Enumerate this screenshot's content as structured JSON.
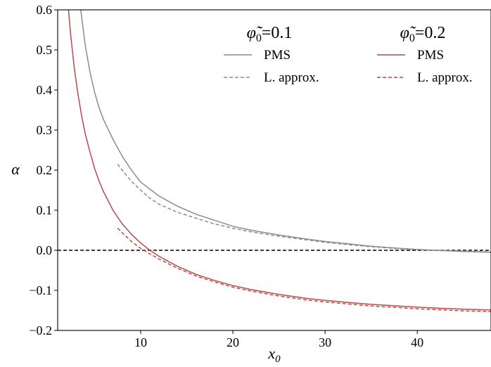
{
  "chart_data": {
    "type": "line",
    "xlabel_base": "x",
    "xlabel_sub": "0",
    "ylabel": "α",
    "xlim": [
      1,
      48
    ],
    "ylim": [
      -0.2,
      0.6
    ],
    "xticks": [
      10,
      20,
      30,
      40
    ],
    "yticks": [
      -0.2,
      -0.1,
      0.0,
      0.1,
      0.2,
      0.3,
      0.4,
      0.5,
      0.6
    ],
    "ytick_labels": [
      "−0.2",
      "−0.1",
      "0.0",
      "0.1",
      "0.2",
      "0.3",
      "0.4",
      "0.5",
      "0.6"
    ],
    "xtick_labels": [
      "10",
      "20",
      "30",
      "40"
    ],
    "grid": false,
    "reference_line": {
      "y": 0.0,
      "style": "dashed",
      "color": "#000000"
    },
    "legend_groups": [
      {
        "title_symbol": "φ̃",
        "title_sub": "0",
        "title_value": "=0.1",
        "color": "#8c8c8c",
        "entries": [
          "PMS",
          "L. approx."
        ]
      },
      {
        "title_symbol": "φ̃",
        "title_sub": "0",
        "title_value": "=0.2",
        "color": "#b94a4a",
        "entries": [
          "PMS",
          "L. approx."
        ]
      }
    ],
    "series": [
      {
        "group": 0,
        "style": "solid",
        "color": "#8c8c8c",
        "x": [
          3.2,
          3.5,
          4,
          4.5,
          5,
          5.5,
          6,
          7,
          8,
          9,
          10,
          12,
          14,
          16,
          18,
          20,
          22,
          25,
          28,
          30,
          33,
          35,
          38,
          40,
          42,
          45,
          48
        ],
        "y": [
          0.66,
          0.6,
          0.51,
          0.445,
          0.395,
          0.355,
          0.325,
          0.277,
          0.235,
          0.2,
          0.17,
          0.135,
          0.11,
          0.09,
          0.075,
          0.06,
          0.05,
          0.038,
          0.028,
          0.022,
          0.015,
          0.01,
          0.005,
          0.002,
          0.0,
          -0.003,
          -0.005
        ]
      },
      {
        "group": 0,
        "style": "dashed",
        "color": "#8c8c8c",
        "x": [
          7.5,
          8,
          9,
          10,
          11,
          12,
          14,
          16,
          18,
          20,
          22,
          25,
          28,
          30,
          33,
          35,
          38,
          40,
          42,
          45,
          48
        ],
        "y": [
          0.215,
          0.2,
          0.172,
          0.15,
          0.13,
          0.115,
          0.095,
          0.08,
          0.066,
          0.055,
          0.046,
          0.035,
          0.026,
          0.02,
          0.013,
          0.009,
          0.004,
          0.002,
          0.0,
          -0.002,
          -0.004
        ]
      },
      {
        "group": 1,
        "style": "solid",
        "color": "#b94a4a",
        "x": [
          2.1,
          2.4,
          2.8,
          3.2,
          3.6,
          4,
          4.5,
          5,
          5.5,
          6,
          7,
          8,
          9,
          10,
          11,
          12,
          14,
          16,
          18,
          20,
          22,
          25,
          28,
          30,
          33,
          35,
          38,
          40,
          42,
          45,
          48
        ],
        "y": [
          0.62,
          0.54,
          0.455,
          0.39,
          0.335,
          0.29,
          0.245,
          0.205,
          0.172,
          0.145,
          0.1,
          0.066,
          0.04,
          0.018,
          0.0,
          -0.015,
          -0.04,
          -0.06,
          -0.075,
          -0.088,
          -0.098,
          -0.11,
          -0.12,
          -0.125,
          -0.131,
          -0.135,
          -0.139,
          -0.142,
          -0.144,
          -0.147,
          -0.149
        ]
      },
      {
        "group": 1,
        "style": "dashed",
        "color": "#b94a4a",
        "x": [
          7.5,
          8,
          9,
          10,
          11,
          12,
          14,
          16,
          18,
          20,
          22,
          25,
          28,
          30,
          33,
          35,
          38,
          40,
          42,
          45,
          48
        ],
        "y": [
          0.055,
          0.044,
          0.022,
          0.005,
          -0.009,
          -0.022,
          -0.045,
          -0.064,
          -0.079,
          -0.092,
          -0.102,
          -0.114,
          -0.124,
          -0.129,
          -0.135,
          -0.139,
          -0.143,
          -0.146,
          -0.148,
          -0.151,
          -0.153
        ]
      }
    ]
  }
}
